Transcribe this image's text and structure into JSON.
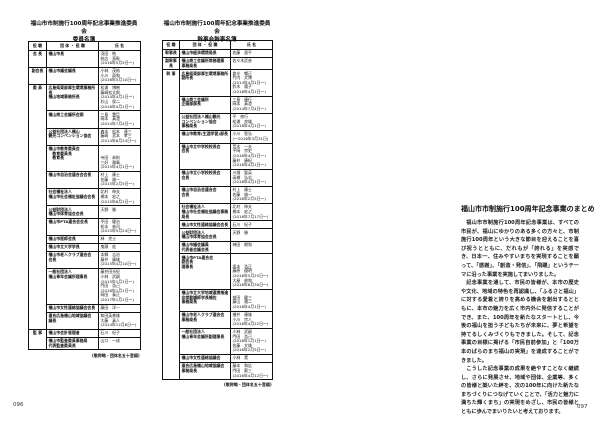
{
  "left_page": {
    "title": "福山市市制施行100周年記念事業推進委員会\n委員名簿",
    "headers": [
      "役 職",
      "団 体 ・ 役 職",
      "氏 名"
    ],
    "rows": [
      {
        "role": "会 長",
        "org": "福山市長",
        "names": "羽田　皓\n枝広　直幹\n(2016年5月5日～)"
      },
      {
        "role": "副会長",
        "org": "福山市議会議長",
        "names": "小林　茂裕\n小川　眞和\n(2016年5月10日～)"
      },
      {
        "role": "委 員",
        "org": "広島県東部厚生環境事務所長\n福山地域事務所長",
        "names": "松浦　博樹\n藤崎松太郎\n(2014年4月1日～)\n杉山　保二\n(2016年4月1日～)"
      },
      {
        "role": "",
        "org": "福山商工会議所会頭",
        "names": "三島　豊臣\n岡本　真澄\n(2014年7月4日～)"
      },
      {
        "role": "",
        "org": "公益社団法人福山\n観光コンベンション協会",
        "names": "森本　松本　達三\n藤崎　宮本　孝三\n(2014年6月24日～)"
      },
      {
        "role": "",
        "org": "福山市教育委員会\n　教育委員長\n　教育長",
        "names": "\n\n寺田　恭則\n三好　雅章\n(2015年4月1日～)"
      },
      {
        "role": "",
        "org": "福山市自治会連合会会長",
        "names": "村上　康士\n佐藤　雄一\n(2015年2月5日～)"
      },
      {
        "role": "",
        "org": "社会福祉法人\n福山市社会福祉協議会会長",
        "names": "北村　伸夫\n橋本　宏之\n(2015年6月1日～)"
      },
      {
        "role": "",
        "org": "公益財団法人\n福山市体育協会会長",
        "names": "天野　勝"
      },
      {
        "role": "",
        "org": "福山市PTA連合会会長",
        "names": "平田　健治\n松本　祐司\n(2015年5月24日～)"
      },
      {
        "role": "",
        "org": "福山市医師会長",
        "names": "林　克士"
      },
      {
        "role": "",
        "org": "福山市立大学学長",
        "names": "鬼頭　宏"
      },
      {
        "role": "",
        "org": "福山市老人クラブ連合会\n会長",
        "names": "本郷　吉治\n藤井　康雄\n(2015年4月10日～)"
      },
      {
        "role": "",
        "org": "一般社団法人\n福山青年会議所理事長",
        "names": "藤井田光紀\n小林　武嗣\n(2015年1月1日～)\n門田　浩己\n(2016年1月1日～)\n岡田　泰正\n(2017年1月1日～)"
      },
      {
        "role": "",
        "org": "福山市女性連絡協議会会長",
        "names": "藤田　洋一"
      },
      {
        "role": "",
        "org": "連合広島福山地域協議会\n議長",
        "names": "和田英美雄\n大藤　真人\n(2014年12月6日～)"
      },
      {
        "role": "監 事",
        "org": "福山市会計管理者",
        "names": "石川　紀子"
      },
      {
        "role": "",
        "org": "福山市監査委員事務局\n代表監査委員長",
        "names": "山口　一成"
      }
    ],
    "note": "(敬称略・団体名五十音順)",
    "page_number": "096"
  },
  "right_page": {
    "title": "福山市市制施行100周年記念事業推進委員会\n幹事会幹事名簿",
    "headers": [
      "役 職",
      "団 体 ・ 役 職",
      "氏 名"
    ],
    "rows": [
      {
        "role": "幹事長",
        "org": "福山市経済環境局長",
        "names": "佐藤　昌平"
      },
      {
        "role": "副幹事長",
        "org": "福山商工会議所常務理事\n事務局長",
        "names": "佐々木武彦"
      },
      {
        "role": "幹 事",
        "org": "広島県東部厚生環境事務所\n副所長",
        "names": "倉光　暢正\n竹内　文博\n(2014年4月1日～)\n鈴木　陽子\n(2016年4月1日～)"
      },
      {
        "role": "",
        "org": "福山商工会議所\n企画部部長",
        "names": "三島　康行\n岡本　真澄\n(2014年7月4日～)"
      },
      {
        "role": "",
        "org": "公益社団法人福山観光\nコンベンション協会\n事務局長",
        "names": "平　修行\n松浦　良雄\n(2016年4月1日～)"
      },
      {
        "role": "",
        "org": "福山市教育(生涯学習)部長",
        "names": "小川　智弘\n(～2016年3月31日)"
      },
      {
        "role": "",
        "org": "福山市立中学校校長会\n会長",
        "names": "荒木　一夫\n平岡　宗史\n(2016年4月1日～)\n藤井　康紀\n(2016年4月1日～)"
      },
      {
        "role": "",
        "org": "福山市立小学校校長会\n会長",
        "names": "川畑　聖英\n高橋　弘志\n(2016年4月1日～)"
      },
      {
        "role": "",
        "org": "福山市自治会連合会\n会長",
        "names": "村上　康士\n佐藤　雄一\n(2016年2月5日～)"
      },
      {
        "role": "",
        "org": "社会福祉法人\n福山市社会福祉協議会事務局長",
        "names": "北村　伸夫\n橋本　宏之\n(2016年7月17日～)"
      },
      {
        "role": "",
        "org": "福山市女性連絡協議会会長",
        "names": "石川　紀子"
      },
      {
        "role": "",
        "org": "公益財団法人\n福山市体育協会会長",
        "names": "天野　勝"
      },
      {
        "role": "",
        "org": "福山市議会議員\n代表者会議会長",
        "names": "神田　朗和"
      },
      {
        "role": "",
        "org": "福山市PTA連合会\n副会長\n理事長",
        "names": "\n\n坂本　浩正\n藤原　優明\n(2016年5月25日～)\n大屋　俊和\n(2016年6月30日～)"
      },
      {
        "role": "",
        "org": "福山市立大学地域連携推進\n非常勤講師学長補佐\n事務局長",
        "names": "\n前田　健三\n藤山　雅二\n(2016年4月1日～)"
      },
      {
        "role": "",
        "org": "福山市老人クラブ連合会\n事務局長",
        "names": "檜井　康雄\n小川　宗人\n(2016年4月22日～)"
      },
      {
        "role": "",
        "org": "一般社団法人\n福山青年会議所副理事長",
        "names": "小林　武嗣\n門田　浩己\n(2016年1月1日～)\n佐藤　文雄\n(2016年2月5日～)"
      },
      {
        "role": "",
        "org": "福山市女性連絡協議会",
        "names": "小林　実"
      },
      {
        "role": "",
        "org": "連合広島福山地域協議会\n事務局長",
        "names": "藤本　和広\n門田　龍三\n(2016年4月12日～)"
      }
    ],
    "note": "(敬称略・団体名五十音順)",
    "summary": {
      "title": "福山市市制施行100周年記念事業のまとめ",
      "paragraphs": [
        "福山市市制施行100周年記念事業は、すべての市民が、福山にゆかりのある多くの方々と、市制施行100周年という大きな節目を迎えることを喜び祝うとともに、だれもが「誇れる」を実感でき、日本一、住みやすいまちを実現することを願って、「感謝」、「創造・発信」、「飛躍」というテーマに沿った事業を実施してまいりました。",
        "記念事業を通して、市民の皆様が、本市の歴史や文化、地域の特色を再認識し、「ふるさと福山」に対する愛着と誇りを高める機会を創出するとともに、本市の魅力を広く市内外に発信することができ、また、100周年を新たなスタートとし、今後の福山を担う子どもたちが未来に、夢と希望を持てるしくみづくりもできました。そして、記念事業の目標に掲げる「市民自前参加」と「100万本のばらのまち福山の実現」を達成することができました。",
        "こうした記念事業の成果を絶やすことなく継続し、さらに発展させ、地域や団体、企業等、多くの皆様と築いた絆を、次の100年に向けた新たなまちづくりにつなげていくことで、「活力と魅力に満ちた輝くまち」の実現をめざし、市民の皆様とともに歩んでまいりたいと考えております。"
      ]
    },
    "page_number": "097"
  }
}
